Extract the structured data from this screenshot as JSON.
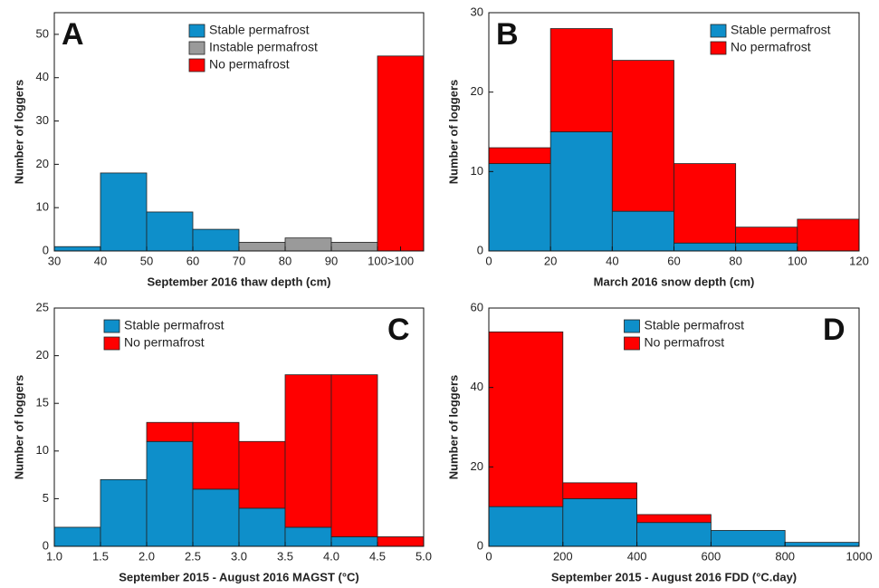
{
  "chart_data": [
    {
      "type": "histogram",
      "label": "A",
      "xlabel": "September 2016 thaw depth (cm)",
      "ylabel": "Number of loggers",
      "bins": [
        30,
        40,
        50,
        60,
        70,
        80,
        90,
        100,
        110
      ],
      "stacked": true,
      "series": [
        {
          "name": "Stable permafrost",
          "color": "#0e8fca",
          "values": [
            1,
            18,
            9,
            5,
            0,
            0,
            0,
            0
          ]
        },
        {
          "name": "Instable permafrost",
          "color": "#9a9a9a",
          "values": [
            0,
            0,
            0,
            0,
            2,
            3,
            2,
            0
          ]
        },
        {
          "name": "No permafrost",
          "color": "#ff0000",
          "values": [
            0,
            0,
            0,
            0,
            0,
            0,
            0,
            45
          ]
        }
      ],
      "xlim": [
        30,
        110
      ],
      "xticks": [
        30,
        40,
        50,
        60,
        70,
        80,
        90,
        100,
        {
          "value": 105,
          "label": ">100"
        }
      ],
      "ylim": [
        0,
        55
      ],
      "yticks": [
        0,
        10,
        20,
        30,
        40,
        50
      ],
      "grid": false,
      "legend_loc": "upper center",
      "label_loc": "upper left"
    },
    {
      "type": "histogram",
      "label": "B",
      "xlabel": "March 2016 snow depth (cm)",
      "ylabel": "Number of loggers",
      "bins": [
        0,
        20,
        40,
        60,
        80,
        100,
        120
      ],
      "stacked": true,
      "series": [
        {
          "name": "Stable permafrost",
          "color": "#0e8fca",
          "values": [
            11,
            15,
            5,
            1,
            1,
            0
          ]
        },
        {
          "name": "No permafrost",
          "color": "#ff0000",
          "values": [
            2,
            13,
            19,
            10,
            2,
            4
          ]
        }
      ],
      "xlim": [
        0,
        120
      ],
      "xticks": [
        0,
        20,
        40,
        60,
        80,
        100,
        120
      ],
      "ylim": [
        0,
        30
      ],
      "yticks": [
        0,
        10,
        20,
        30
      ],
      "grid": false,
      "legend_loc": "upper right",
      "label_loc": "upper left"
    },
    {
      "type": "histogram",
      "label": "C",
      "xlabel": "September 2015 - August 2016 MAGST (°C)",
      "ylabel": "Number of loggers",
      "bins": [
        1,
        1.5,
        2,
        2.5,
        3,
        3.5,
        4,
        4.5,
        5
      ],
      "stacked": true,
      "series": [
        {
          "name": "Stable permafrost",
          "color": "#0e8fca",
          "values": [
            2,
            7,
            11,
            6,
            4,
            2,
            1,
            0
          ]
        },
        {
          "name": "No permafrost",
          "color": "#ff0000",
          "values": [
            0,
            0,
            2,
            7,
            7,
            16,
            17,
            1
          ]
        }
      ],
      "xlim": [
        1,
        5
      ],
      "xticks": [
        {
          "value": 1,
          "label": "1.0"
        },
        1.5,
        {
          "value": 2,
          "label": "2.0"
        },
        2.5,
        {
          "value": 3,
          "label": "3.0"
        },
        3.5,
        {
          "value": 4,
          "label": "4.0"
        },
        4.5,
        {
          "value": 5,
          "label": "5.0"
        }
      ],
      "ylim": [
        0,
        25
      ],
      "yticks": [
        0,
        5,
        10,
        15,
        20,
        25
      ],
      "grid": false,
      "legend_loc": "upper left",
      "label_loc": "upper right"
    },
    {
      "type": "histogram",
      "label": "D",
      "xlabel": "September 2015 - August 2016 FDD (°C.day)",
      "ylabel": "Number of loggers",
      "bins": [
        0,
        200,
        400,
        600,
        800,
        1000
      ],
      "stacked": true,
      "series": [
        {
          "name": "Stable permafrost",
          "color": "#0e8fca",
          "values": [
            10,
            12,
            6,
            4,
            1
          ]
        },
        {
          "name": "No permafrost",
          "color": "#ff0000",
          "values": [
            44,
            4,
            2,
            0,
            0
          ]
        }
      ],
      "xlim": [
        0,
        1000
      ],
      "xticks": [
        0,
        200,
        400,
        600,
        800,
        1000
      ],
      "ylim": [
        0,
        60
      ],
      "yticks": [
        0,
        20,
        40,
        60
      ],
      "grid": false,
      "legend_loc": "upper center",
      "label_loc": "upper right"
    }
  ]
}
